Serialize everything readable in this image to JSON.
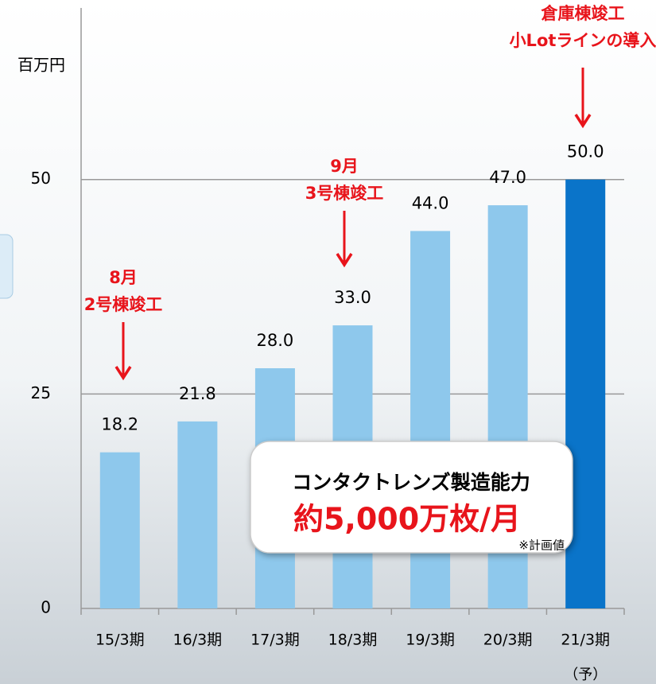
{
  "chart_data": {
    "type": "bar",
    "y_unit": "百万円",
    "categories": [
      "15/3期",
      "16/3期",
      "17/3期",
      "18/3期",
      "19/3期",
      "20/3期",
      "21/3期"
    ],
    "category_note": "（予）",
    "values": [
      18.2,
      21.8,
      28.0,
      33.0,
      44.0,
      47.0,
      50.0
    ],
    "value_labels": [
      "18.2",
      "21.8",
      "28.0",
      "33.0",
      "44.0",
      "47.0",
      "50.0"
    ],
    "colors": [
      "#8ec8ec",
      "#8ec8ec",
      "#8ec8ec",
      "#8ec8ec",
      "#8ec8ec",
      "#8ec8ec",
      "#0a74c9"
    ],
    "ylim": [
      0,
      70
    ],
    "yticks": [
      0,
      25,
      50
    ],
    "grid": true,
    "annotations": [
      {
        "lines": [
          "8月",
          "2号棟竣工"
        ]
      },
      {
        "lines": [
          "9月",
          "3号棟竣工"
        ]
      },
      {
        "lines": [
          "倉庫棟竣工",
          "小Lotラインの導入"
        ]
      }
    ],
    "callout": {
      "title": "コンタクトレンズ製造能力",
      "highlight": "約5,000万枚/月",
      "note": "※計画値"
    }
  }
}
